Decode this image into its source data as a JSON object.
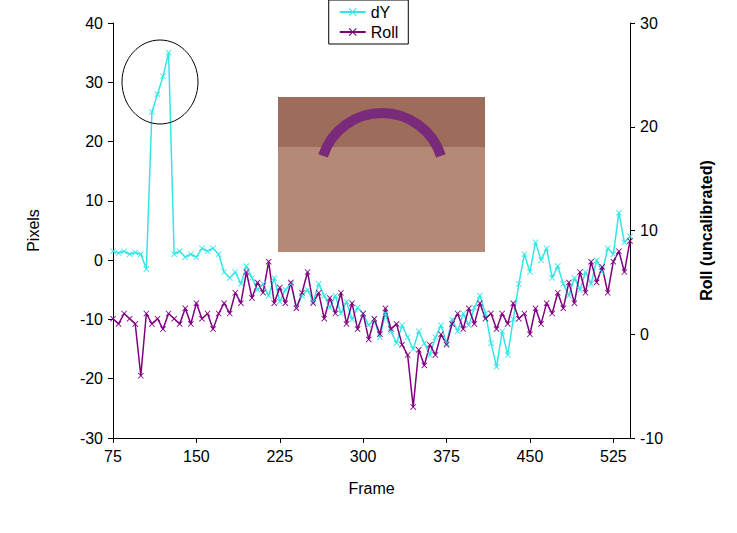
{
  "chart_data": {
    "type": "line",
    "xlabel": "Frame",
    "ylabel": "Pixels",
    "y2label": "Roll (uncalibrated)",
    "x": [
      75,
      80,
      85,
      90,
      95,
      100,
      105,
      110,
      115,
      120,
      125,
      130,
      135,
      140,
      145,
      150,
      155,
      160,
      165,
      170,
      175,
      180,
      185,
      190,
      195,
      200,
      205,
      210,
      215,
      220,
      225,
      230,
      235,
      240,
      245,
      250,
      255,
      260,
      265,
      270,
      275,
      280,
      285,
      290,
      295,
      300,
      305,
      310,
      315,
      320,
      325,
      330,
      335,
      340,
      345,
      350,
      355,
      360,
      365,
      370,
      375,
      380,
      385,
      390,
      395,
      400,
      405,
      410,
      415,
      420,
      425,
      430,
      435,
      440,
      445,
      450,
      455,
      460,
      465,
      470,
      475,
      480,
      485,
      490,
      495,
      500,
      505,
      510,
      515,
      520,
      525,
      530,
      535,
      540
    ],
    "xlim": [
      75,
      540
    ],
    "xticks": [
      75,
      150,
      225,
      300,
      375,
      450,
      525
    ],
    "ylim": [
      -30,
      40
    ],
    "yticks": [
      -30,
      -20,
      -10,
      0,
      10,
      20,
      30,
      40
    ],
    "y2lim": [
      -10,
      30
    ],
    "y2ticks": [
      -10,
      0,
      10,
      20,
      30
    ],
    "series": [
      {
        "name": "dY",
        "color": "#33e6e6",
        "marker": "x",
        "values": [
          1.5,
          1.2,
          1.5,
          1,
          1.3,
          1,
          -1.5,
          25,
          28,
          31,
          35,
          1,
          1.5,
          0.5,
          1,
          0.5,
          2,
          1.5,
          2,
          1,
          -2,
          -3,
          -2,
          -4,
          -1,
          -3,
          -5,
          -4,
          -6,
          -3,
          -7,
          -5,
          -4,
          -8,
          -6,
          -5,
          -7,
          -4,
          -6,
          -8,
          -6,
          -9,
          -7,
          -10,
          -8,
          -9,
          -11,
          -10,
          -13,
          -9,
          -12,
          -14,
          -11,
          -13,
          -15,
          -12,
          -14,
          -16,
          -13,
          -11,
          -14,
          -10,
          -12,
          -9,
          -11,
          -8,
          -6,
          -9,
          -14,
          -18,
          -12,
          -16,
          -10,
          -4,
          1,
          -2,
          3,
          0,
          2,
          -3,
          -1,
          -4,
          -6,
          -3,
          -5,
          -2,
          -4,
          0,
          -2,
          2,
          1,
          8,
          3,
          4
        ]
      },
      {
        "name": "Roll",
        "color": "#800080",
        "marker": "x",
        "axis": "y2",
        "values": [
          1.5,
          1,
          2,
          1.5,
          1,
          -4,
          2,
          1,
          1.5,
          0.5,
          2,
          1.5,
          1,
          2.5,
          1,
          3,
          1.5,
          2,
          0.5,
          2,
          3,
          2,
          4,
          3,
          6,
          3.5,
          5,
          4,
          7,
          3,
          4.5,
          3,
          5,
          2.5,
          4,
          6,
          3,
          4,
          1.5,
          3.5,
          2,
          4,
          1,
          3,
          0.5,
          2,
          -0.5,
          1.5,
          0,
          2.5,
          0.5,
          1,
          -1,
          -2,
          -7,
          -1.5,
          -3,
          -1,
          -2,
          0,
          -1,
          1,
          2,
          0.5,
          2.5,
          1,
          3,
          1.5,
          2,
          0.5,
          2,
          1,
          3,
          1.5,
          2,
          0,
          2.5,
          1,
          3,
          2,
          4,
          2.5,
          5,
          3,
          6,
          4,
          7,
          5,
          6.5,
          4,
          7,
          8,
          6,
          9
        ]
      }
    ],
    "legend": "top",
    "grid": false
  }
}
